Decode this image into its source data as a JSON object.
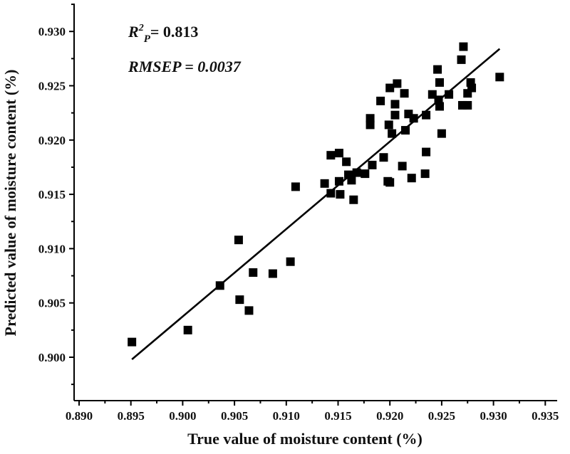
{
  "chart_data": {
    "type": "scatter",
    "title": "",
    "xlabel": "True value of moisture content (%)",
    "ylabel": "Predicted value of moisture content (%)",
    "xlim": [
      0.89,
      0.935
    ],
    "ylim": [
      0.896,
      0.933
    ],
    "xticks": [
      "0.890",
      "0.895",
      "0.900",
      "0.905",
      "0.910",
      "0.915",
      "0.920",
      "0.925",
      "0.930",
      "0.935"
    ],
    "yticks": [
      "0.900",
      "0.905",
      "0.910",
      "0.915",
      "0.920",
      "0.925",
      "0.930"
    ],
    "grid": false,
    "annotations": {
      "r2_label": "R",
      "r2_sup": "2",
      "r2_sub": "P",
      "r2_value": "= 0.813",
      "rmsep": "RMSEP = 0.0037"
    },
    "fit_line": {
      "x": [
        0.8951,
        0.9306
      ],
      "y": [
        0.8998,
        0.9284
      ]
    },
    "points": [
      [
        0.8951,
        0.9014
      ],
      [
        0.9005,
        0.9025
      ],
      [
        0.9036,
        0.9066
      ],
      [
        0.9054,
        0.9108
      ],
      [
        0.9055,
        0.9053
      ],
      [
        0.9064,
        0.9043
      ],
      [
        0.9068,
        0.9078
      ],
      [
        0.9087,
        0.9077
      ],
      [
        0.9104,
        0.9088
      ],
      [
        0.9109,
        0.9157
      ],
      [
        0.9137,
        0.916
      ],
      [
        0.9143,
        0.9151
      ],
      [
        0.9143,
        0.9186
      ],
      [
        0.9151,
        0.9188
      ],
      [
        0.9151,
        0.9162
      ],
      [
        0.9152,
        0.915
      ],
      [
        0.9158,
        0.918
      ],
      [
        0.916,
        0.9168
      ],
      [
        0.9163,
        0.9163
      ],
      [
        0.9165,
        0.9145
      ],
      [
        0.9168,
        0.917
      ],
      [
        0.9176,
        0.9169
      ],
      [
        0.9181,
        0.9214
      ],
      [
        0.9181,
        0.922
      ],
      [
        0.9183,
        0.9177
      ],
      [
        0.9191,
        0.9236
      ],
      [
        0.9194,
        0.9184
      ],
      [
        0.9198,
        0.9162
      ],
      [
        0.9199,
        0.9214
      ],
      [
        0.92,
        0.9161
      ],
      [
        0.92,
        0.9248
      ],
      [
        0.9202,
        0.9206
      ],
      [
        0.9205,
        0.9223
      ],
      [
        0.9205,
        0.9233
      ],
      [
        0.9207,
        0.9252
      ],
      [
        0.9212,
        0.9176
      ],
      [
        0.9214,
        0.9243
      ],
      [
        0.9215,
        0.9209
      ],
      [
        0.9218,
        0.9224
      ],
      [
        0.9221,
        0.9165
      ],
      [
        0.9223,
        0.922
      ],
      [
        0.9234,
        0.9169
      ],
      [
        0.9235,
        0.9189
      ],
      [
        0.9235,
        0.9223
      ],
      [
        0.9241,
        0.9242
      ],
      [
        0.9246,
        0.9265
      ],
      [
        0.9247,
        0.9237
      ],
      [
        0.9248,
        0.9231
      ],
      [
        0.9248,
        0.9253
      ],
      [
        0.925,
        0.9206
      ],
      [
        0.9257,
        0.9242
      ],
      [
        0.9269,
        0.9274
      ],
      [
        0.927,
        0.9232
      ],
      [
        0.9271,
        0.9286
      ],
      [
        0.9275,
        0.9232
      ],
      [
        0.9275,
        0.9243
      ],
      [
        0.9278,
        0.9253
      ],
      [
        0.9279,
        0.9248
      ],
      [
        0.9306,
        0.9258
      ]
    ],
    "marker": "square",
    "color": "#000000"
  }
}
